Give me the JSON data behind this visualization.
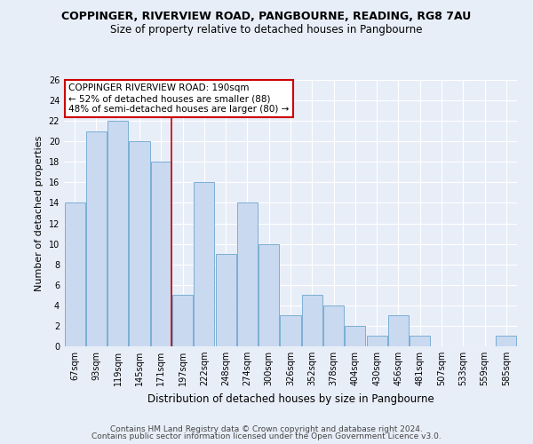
{
  "title": "COPPINGER, RIVERVIEW ROAD, PANGBOURNE, READING, RG8 7AU",
  "subtitle": "Size of property relative to detached houses in Pangbourne",
  "xlabel": "Distribution of detached houses by size in Pangbourne",
  "ylabel": "Number of detached properties",
  "categories": [
    "67sqm",
    "93sqm",
    "119sqm",
    "145sqm",
    "171sqm",
    "197sqm",
    "222sqm",
    "248sqm",
    "274sqm",
    "300sqm",
    "326sqm",
    "352sqm",
    "378sqm",
    "404sqm",
    "430sqm",
    "456sqm",
    "481sqm",
    "507sqm",
    "533sqm",
    "559sqm",
    "585sqm"
  ],
  "values": [
    14,
    21,
    22,
    20,
    18,
    5,
    16,
    9,
    14,
    10,
    3,
    5,
    4,
    2,
    1,
    3,
    1,
    0,
    0,
    0,
    1
  ],
  "bar_color": "#c9d9f0",
  "bar_edge_color": "#7bafd4",
  "property_line_index": 5,
  "property_line_color": "#cc0000",
  "annotation_text": "COPPINGER RIVERVIEW ROAD: 190sqm\n← 52% of detached houses are smaller (88)\n48% of semi-detached houses are larger (80) →",
  "annotation_box_color": "#ffffff",
  "annotation_box_edge_color": "#cc0000",
  "ylim": [
    0,
    26
  ],
  "yticks": [
    0,
    2,
    4,
    6,
    8,
    10,
    12,
    14,
    16,
    18,
    20,
    22,
    24,
    26
  ],
  "bg_color": "#e8eef8",
  "plot_bg_color": "#e8eef8",
  "grid_color": "#ffffff",
  "footer_line1": "Contains HM Land Registry data © Crown copyright and database right 2024.",
  "footer_line2": "Contains public sector information licensed under the Open Government Licence v3.0.",
  "title_fontsize": 9,
  "subtitle_fontsize": 8.5,
  "xlabel_fontsize": 8.5,
  "ylabel_fontsize": 8,
  "tick_fontsize": 7,
  "annotation_fontsize": 7.5,
  "footer_fontsize": 6.5
}
